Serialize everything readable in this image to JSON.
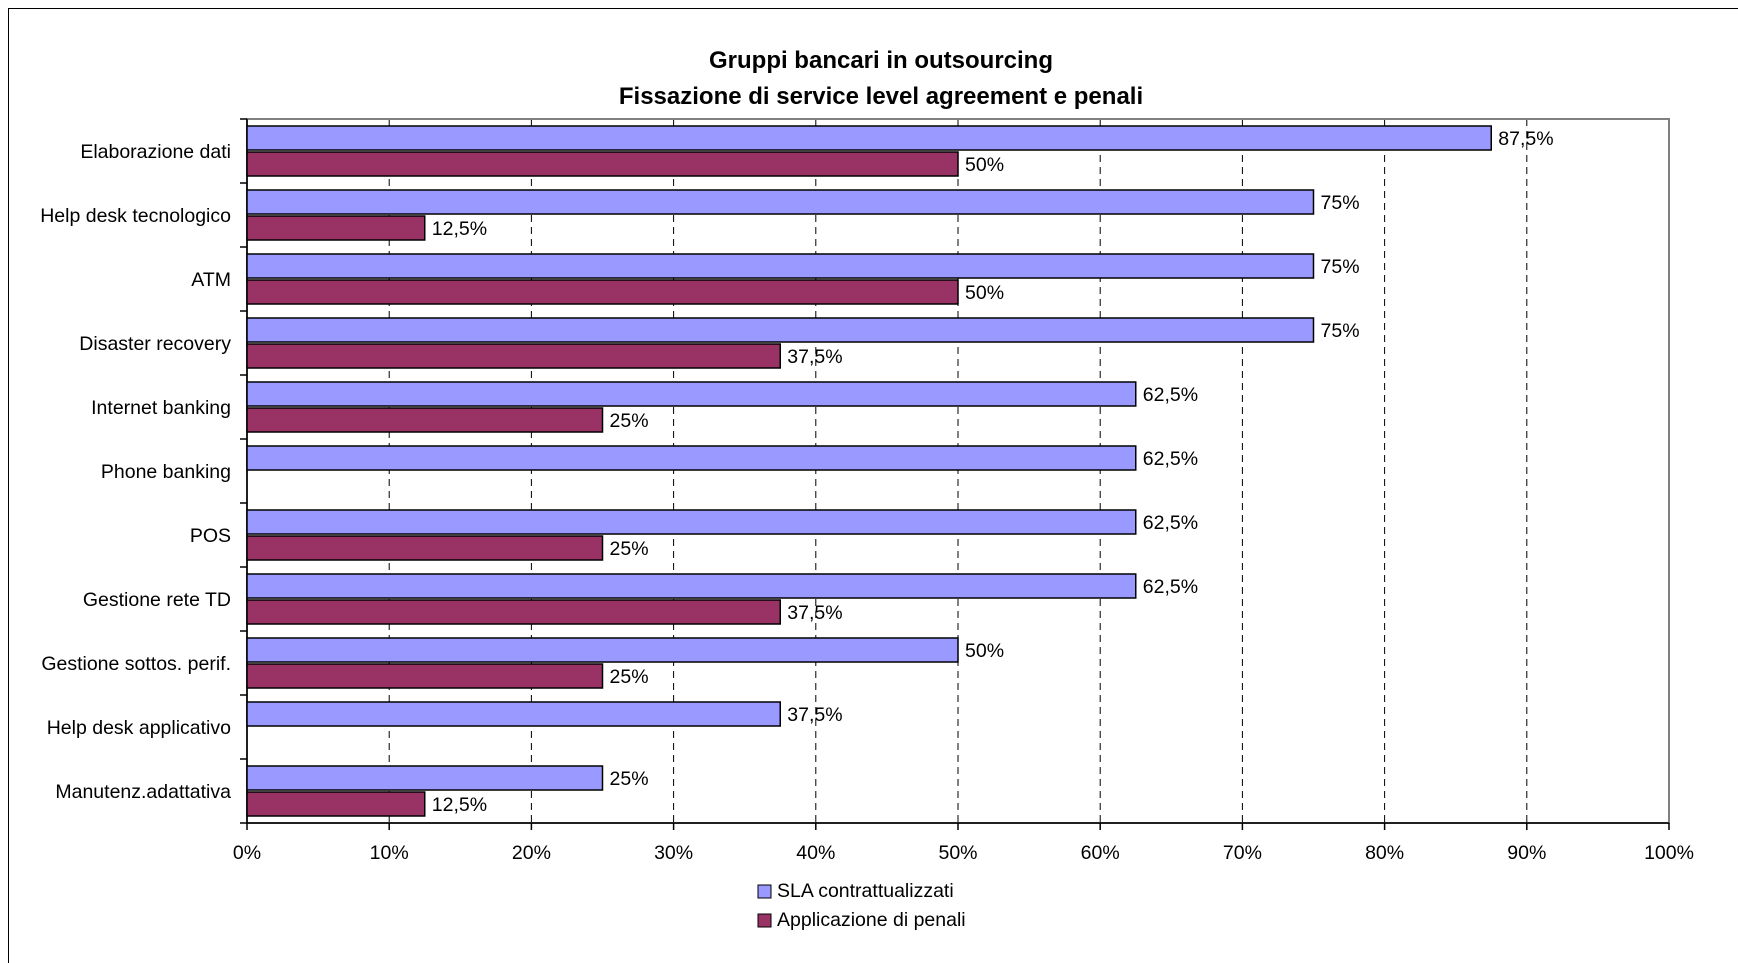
{
  "chart_data": {
    "type": "bar",
    "orientation": "horizontal",
    "title": [
      "Gruppi bancari in outsourcing",
      "Fissazione di service level agreement e penali"
    ],
    "categories": [
      "Elaborazione dati",
      "Help desk tecnologico",
      "ATM",
      "Disaster recovery",
      "Internet banking",
      "Phone banking",
      "POS",
      "Gestione rete TD",
      "Gestione sottos. perif.",
      "Help desk applicativo",
      "Manutenz.adattativa"
    ],
    "series": [
      {
        "name": "SLA contrattualizzati",
        "color": "#9999ff",
        "values": [
          87.5,
          75,
          75,
          75,
          62.5,
          62.5,
          62.5,
          62.5,
          50,
          37.5,
          25
        ],
        "labels": [
          "87,5%",
          "75%",
          "75%",
          "75%",
          "62,5%",
          "62,5%",
          "62,5%",
          "62,5%",
          "50%",
          "37,5%",
          "25%"
        ]
      },
      {
        "name": "Applicazione di penali",
        "color": "#993366",
        "values": [
          50,
          12.5,
          50,
          37.5,
          25,
          null,
          25,
          37.5,
          25,
          null,
          12.5
        ],
        "labels": [
          "50%",
          "12,5%",
          "50%",
          "37,5%",
          "25%",
          null,
          "25%",
          "37,5%",
          "25%",
          null,
          "12,5%"
        ]
      }
    ],
    "xlim": [
      0,
      100
    ],
    "xticks": [
      0,
      10,
      20,
      30,
      40,
      50,
      60,
      70,
      80,
      90,
      100
    ],
    "xtick_labels": [
      "0%",
      "10%",
      "20%",
      "30%",
      "40%",
      "50%",
      "60%",
      "70%",
      "80%",
      "90%",
      "100%"
    ],
    "grid": "vertical dashed",
    "legend_position": "bottom-center"
  }
}
